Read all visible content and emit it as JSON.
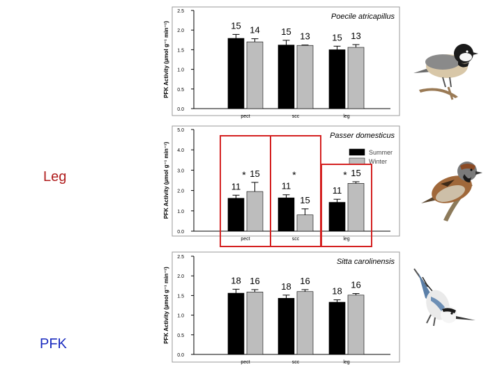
{
  "slide": {
    "left_label_top": "Leg",
    "left_label_bottom": "PFK"
  },
  "colors": {
    "summer": "#000000",
    "winter": "#bdbdbd",
    "highlight": "#d42020",
    "label_top": "#b01c1c",
    "label_bottom": "#1a2bbf"
  },
  "chart_data": [
    {
      "type": "bar",
      "title": "Poecile atricapillus",
      "ylabel": "PFK Activity (µmol g⁻¹ min⁻¹)",
      "categories": [
        "pect",
        "scc",
        "leg"
      ],
      "ylim": [
        0,
        2.5
      ],
      "yticks": [
        0.0,
        0.5,
        1.0,
        1.5,
        2.0,
        2.5
      ],
      "tick_labels": [
        "0.0",
        "0.5",
        "1.0",
        "1.5",
        "2.0",
        "2.5"
      ],
      "series": [
        {
          "name": "Summer",
          "values": [
            1.79,
            1.62,
            1.5
          ],
          "errors": [
            0.1,
            0.12,
            0.09
          ],
          "n_labels": [
            "15",
            "15",
            "15"
          ]
        },
        {
          "name": "Winter",
          "values": [
            1.7,
            1.61,
            1.56
          ],
          "errors": [
            0.08,
            0.01,
            0.07
          ],
          "n_labels": [
            "14",
            "13",
            "13"
          ]
        }
      ],
      "significance": [
        "",
        "",
        ""
      ],
      "legend": null
    },
    {
      "type": "bar",
      "title": "Passer domesticus",
      "ylabel": "PFK Activity (µmol g⁻¹ min⁻¹)",
      "categories": [
        "pect",
        "scc",
        "leg"
      ],
      "ylim": [
        0,
        5.0
      ],
      "yticks": [
        0.0,
        1.0,
        2.0,
        3.0,
        4.0,
        5.0
      ],
      "tick_labels": [
        "0.0",
        "1.0",
        "2.0",
        "3.0",
        "4.0",
        "5.0"
      ],
      "series": [
        {
          "name": "Summer",
          "values": [
            1.62,
            1.64,
            1.42
          ],
          "errors": [
            0.15,
            0.15,
            0.15
          ],
          "n_labels": [
            "11",
            "11",
            "11"
          ]
        },
        {
          "name": "Winter",
          "values": [
            1.95,
            0.8,
            2.35
          ],
          "errors": [
            0.45,
            0.3,
            0.08
          ],
          "n_labels": [
            "15",
            "15",
            "15"
          ]
        }
      ],
      "significance": [
        "*",
        "*",
        "*"
      ],
      "legend": {
        "entries": [
          "Summer",
          "Winter"
        ],
        "placement": "top-right"
      }
    },
    {
      "type": "bar",
      "title": "Sitta carolinensis",
      "ylabel": "PFK Activity (µmol g⁻¹ min⁻¹)",
      "categories": [
        "pect",
        "scc",
        "leg"
      ],
      "ylim": [
        0,
        2.5
      ],
      "yticks": [
        0.0,
        0.5,
        1.0,
        1.5,
        2.0,
        2.5
      ],
      "tick_labels": [
        "0.0",
        "0.5",
        "1.0",
        "1.5",
        "2.0",
        "2.5"
      ],
      "series": [
        {
          "name": "Summer",
          "values": [
            1.56,
            1.43,
            1.33
          ],
          "errors": [
            0.1,
            0.08,
            0.06
          ],
          "n_labels": [
            "18",
            "18",
            "18"
          ]
        },
        {
          "name": "Winter",
          "values": [
            1.59,
            1.6,
            1.51
          ],
          "errors": [
            0.06,
            0.05,
            0.04
          ],
          "n_labels": [
            "16",
            "16",
            "16"
          ]
        }
      ],
      "significance": [
        "",
        "",
        ""
      ],
      "legend": null
    }
  ]
}
